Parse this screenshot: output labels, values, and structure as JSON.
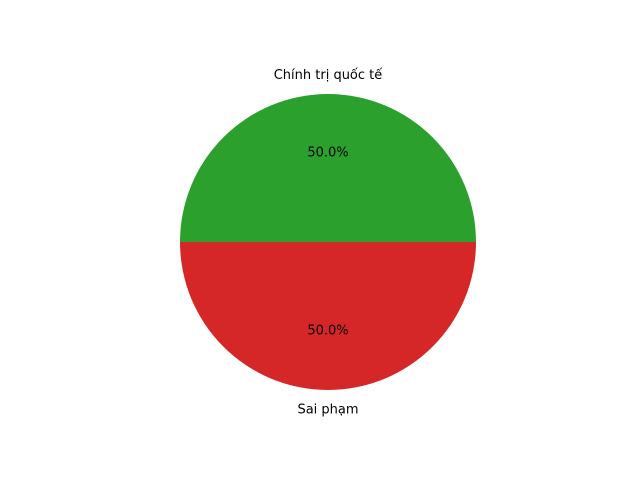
{
  "chart_data": {
    "type": "pie",
    "slices": [
      {
        "label": "Chính trị quốc tế",
        "value": 50.0,
        "pct_label": "50.0%",
        "color": "#2ca02c"
      },
      {
        "label": "Sai phạm",
        "value": 50.0,
        "pct_label": "50.0%",
        "color": "#d62728"
      }
    ],
    "start_angle_deg": 0,
    "direction": "counterclockwise",
    "legend": "none"
  }
}
